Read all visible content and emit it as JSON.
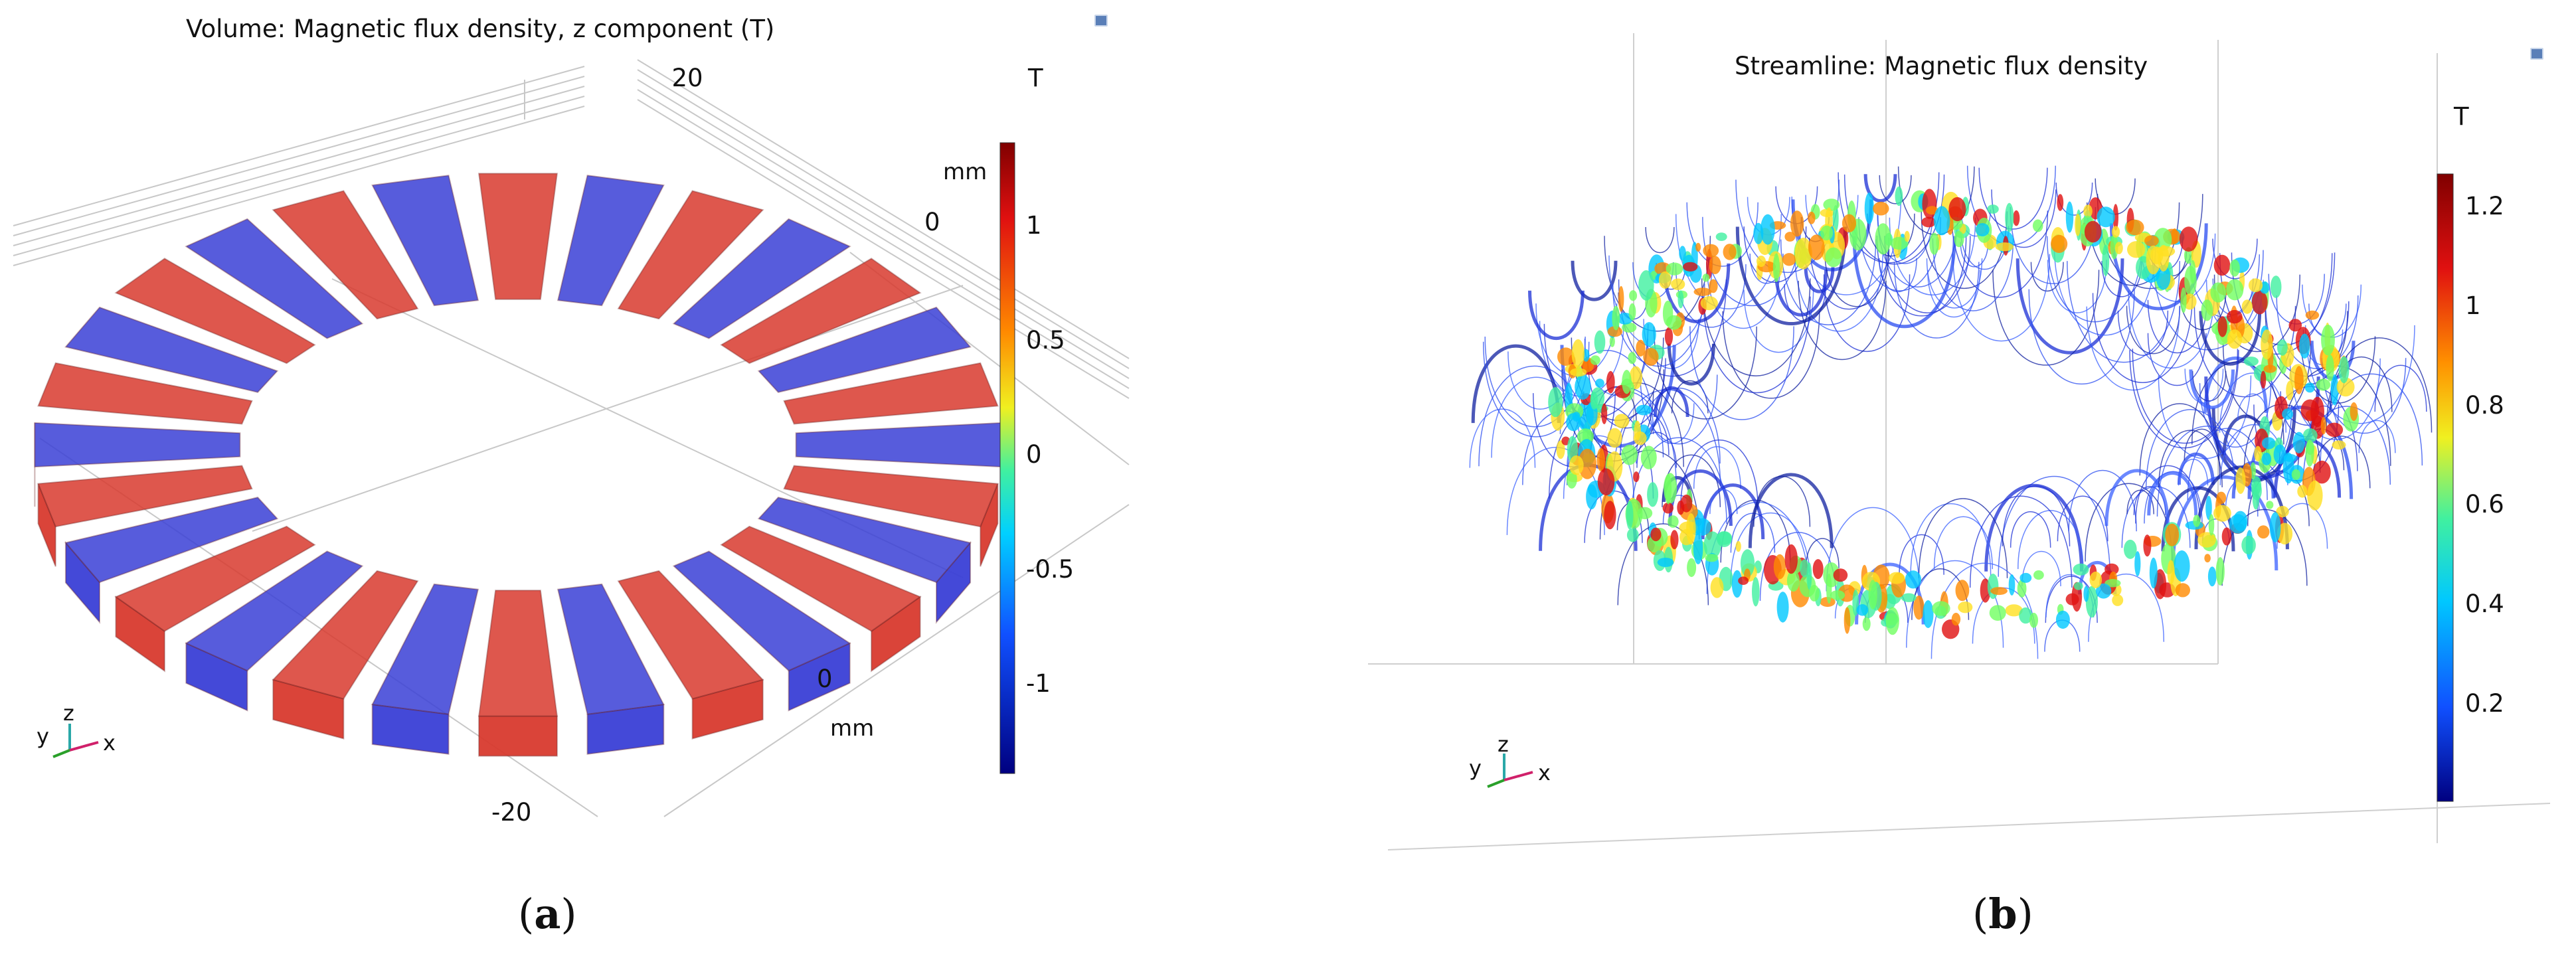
{
  "panel_a": {
    "title": "Volume: Magnetic flux density, z component (T)",
    "colorbar": {
      "unit": "T",
      "ticks": [
        "1",
        "0.5",
        "0",
        "-0.5",
        "-1"
      ]
    },
    "axis_labels": {
      "y_top": "20",
      "mm_right": "mm",
      "zero_right": "0",
      "zero_bottom": "0",
      "mm_bottom": "mm",
      "neg20": "-20"
    },
    "triad": {
      "y": "y",
      "z": "z",
      "x": "x"
    },
    "caption": "a",
    "magnet_count": 28,
    "colors": {
      "north": "#d83a2e",
      "south": "#3a3fd6"
    }
  },
  "panel_b": {
    "title": "Streamline: Magnetic flux density",
    "colorbar": {
      "unit": "T",
      "ticks": [
        "1.2",
        "1",
        "0.8",
        "0.6",
        "0.4",
        "0.2"
      ]
    },
    "triad": {
      "y": "y",
      "z": "z",
      "x": "x"
    },
    "caption": "b"
  }
}
